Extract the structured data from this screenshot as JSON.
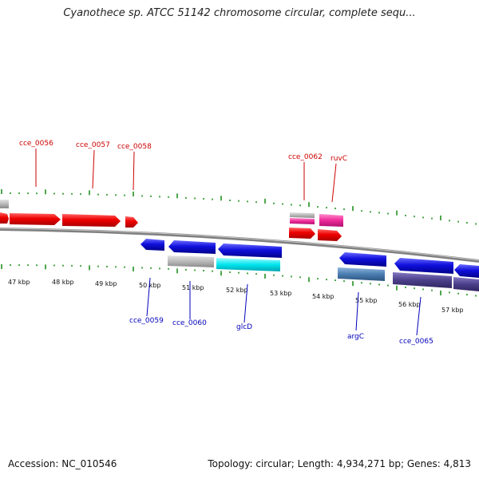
{
  "title": "Cyanothece sp. ATCC 51142 chromosome circular, complete sequ...",
  "footer": {
    "accession": "Accession: NC_010546",
    "summary": "Topology: circular; Length: 4,934,271 bp; Genes: 4,813"
  },
  "colors": {
    "forward_cds": "#ee0000",
    "reverse_cds": "#1010dd",
    "trna_pink": "#ee2a9a",
    "rrna_grey": "#b8b8b8",
    "cyan_feature": "#00e5ee",
    "steelblue_feature": "#4a7db0",
    "slate_feature": "#4b3f8a",
    "backbone": "#888888",
    "ticks": "#118811",
    "forward_label": "#cc0000",
    "reverse_label": "#0000bb"
  },
  "scale_labels": [
    "47 kbp",
    "48 kbp",
    "49 kbp",
    "50 kbp",
    "51 kbp",
    "52 kbp",
    "53 kbp",
    "54 kbp",
    "55 kbp",
    "56 kbp",
    "57 kbp"
  ],
  "gene_labels": [
    {
      "name": "cce_0056",
      "strand": "forward"
    },
    {
      "name": "cce_0057",
      "strand": "forward"
    },
    {
      "name": "cce_0058",
      "strand": "forward"
    },
    {
      "name": "cce_0062",
      "strand": "forward"
    },
    {
      "name": "ruvC",
      "strand": "forward"
    },
    {
      "name": "cce_0059",
      "strand": "reverse"
    },
    {
      "name": "cce_0060",
      "strand": "reverse"
    },
    {
      "name": "glcD",
      "strand": "reverse"
    },
    {
      "name": "argC",
      "strand": "reverse"
    },
    {
      "name": "cce_0065",
      "strand": "reverse"
    }
  ]
}
